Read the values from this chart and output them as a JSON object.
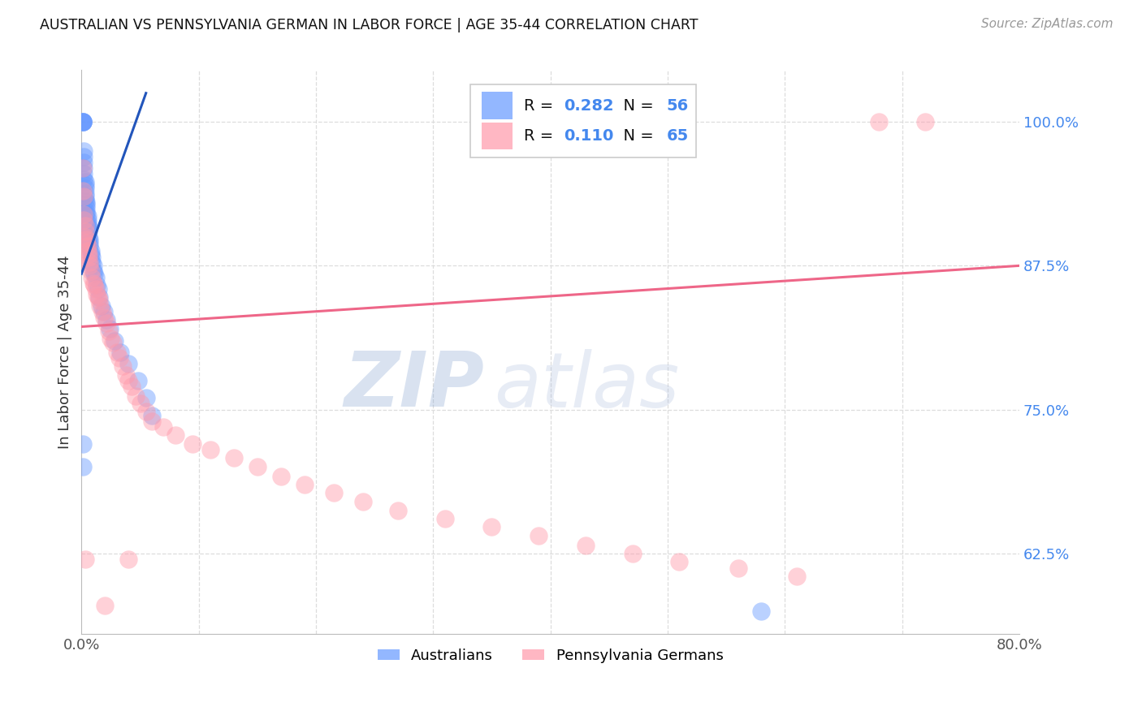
{
  "title": "AUSTRALIAN VS PENNSYLVANIA GERMAN IN LABOR FORCE | AGE 35-44 CORRELATION CHART",
  "source": "Source: ZipAtlas.com",
  "ylabel": "In Labor Force | Age 35-44",
  "ytick_labels": [
    "62.5%",
    "75.0%",
    "87.5%",
    "100.0%"
  ],
  "ytick_values": [
    0.625,
    0.75,
    0.875,
    1.0
  ],
  "xmin": 0.0,
  "xmax": 0.8,
  "ymin": 0.555,
  "ymax": 1.045,
  "blue_R": 0.282,
  "blue_N": 56,
  "pink_R": 0.11,
  "pink_N": 65,
  "blue_color": "#6699FF",
  "pink_color": "#FF99AA",
  "blue_line_color": "#2255BB",
  "pink_line_color": "#EE6688",
  "legend_label_blue": "Australians",
  "legend_label_pink": "Pennsylvania Germans",
  "watermark_zip": "ZIP",
  "watermark_atlas": "atlas",
  "blue_x": [
    0.001,
    0.001,
    0.001,
    0.001,
    0.001,
    0.002,
    0.002,
    0.002,
    0.002,
    0.002,
    0.002,
    0.003,
    0.003,
    0.003,
    0.003,
    0.003,
    0.003,
    0.004,
    0.004,
    0.004,
    0.004,
    0.004,
    0.005,
    0.005,
    0.005,
    0.005,
    0.006,
    0.006,
    0.006,
    0.007,
    0.007,
    0.007,
    0.008,
    0.008,
    0.009,
    0.009,
    0.01,
    0.01,
    0.011,
    0.012,
    0.013,
    0.014,
    0.015,
    0.017,
    0.019,
    0.021,
    0.024,
    0.028,
    0.033,
    0.04,
    0.048,
    0.055,
    0.06,
    0.001,
    0.001,
    0.58
  ],
  "blue_y": [
    1.0,
    1.0,
    1.0,
    1.0,
    1.0,
    0.975,
    0.97,
    0.965,
    0.96,
    0.955,
    0.95,
    0.948,
    0.945,
    0.942,
    0.938,
    0.935,
    0.932,
    0.93,
    0.928,
    0.925,
    0.922,
    0.92,
    0.918,
    0.915,
    0.912,
    0.91,
    0.908,
    0.905,
    0.9,
    0.898,
    0.895,
    0.892,
    0.888,
    0.885,
    0.882,
    0.878,
    0.875,
    0.87,
    0.868,
    0.865,
    0.858,
    0.855,
    0.848,
    0.84,
    0.835,
    0.828,
    0.82,
    0.81,
    0.8,
    0.79,
    0.775,
    0.76,
    0.745,
    0.72,
    0.7,
    0.575
  ],
  "pink_x": [
    0.001,
    0.001,
    0.002,
    0.002,
    0.002,
    0.003,
    0.003,
    0.003,
    0.004,
    0.004,
    0.005,
    0.005,
    0.006,
    0.006,
    0.007,
    0.007,
    0.008,
    0.009,
    0.01,
    0.011,
    0.012,
    0.013,
    0.014,
    0.015,
    0.016,
    0.018,
    0.019,
    0.021,
    0.023,
    0.025,
    0.027,
    0.03,
    0.032,
    0.035,
    0.038,
    0.04,
    0.043,
    0.046,
    0.05,
    0.055,
    0.06,
    0.07,
    0.08,
    0.095,
    0.11,
    0.13,
    0.15,
    0.17,
    0.19,
    0.215,
    0.24,
    0.27,
    0.31,
    0.35,
    0.39,
    0.43,
    0.47,
    0.51,
    0.56,
    0.61,
    0.003,
    0.02,
    0.04,
    0.68,
    0.72
  ],
  "pink_y": [
    0.96,
    0.94,
    0.935,
    0.92,
    0.915,
    0.91,
    0.905,
    0.9,
    0.898,
    0.895,
    0.892,
    0.888,
    0.885,
    0.882,
    0.878,
    0.875,
    0.87,
    0.865,
    0.86,
    0.858,
    0.855,
    0.85,
    0.848,
    0.845,
    0.84,
    0.835,
    0.83,
    0.825,
    0.818,
    0.812,
    0.808,
    0.8,
    0.795,
    0.788,
    0.78,
    0.775,
    0.77,
    0.762,
    0.755,
    0.748,
    0.74,
    0.735,
    0.728,
    0.72,
    0.715,
    0.708,
    0.7,
    0.692,
    0.685,
    0.678,
    0.67,
    0.662,
    0.655,
    0.648,
    0.64,
    0.632,
    0.625,
    0.618,
    0.612,
    0.605,
    0.62,
    0.58,
    0.62,
    1.0,
    1.0
  ],
  "blue_trend_x": [
    0.0,
    0.055
  ],
  "blue_trend_y": [
    0.868,
    1.025
  ],
  "pink_trend_x": [
    0.0,
    0.8
  ],
  "pink_trend_y": [
    0.822,
    0.875
  ]
}
